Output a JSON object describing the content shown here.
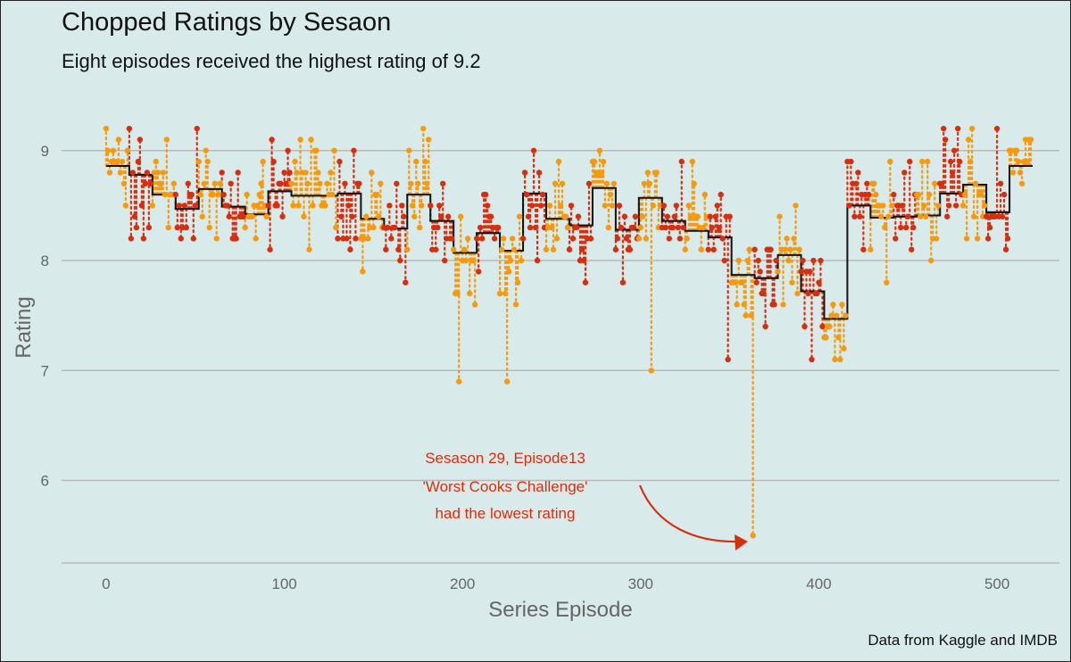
{
  "title": "Chopped Ratings by Sesaon",
  "subtitle": "Eight episodes received the highest rating of 9.2",
  "caption": "Data from Kaggle and IMDB",
  "annotation": {
    "line1": "Sesason 29, Episode13",
    "line2": "'Worst Cooks Challenge'",
    "line3": "had the lowest rating"
  },
  "colors": {
    "background": "#d8eae9",
    "odd_season": "#f59a0e",
    "even_season": "#d62f10",
    "season_mean": "#111111",
    "gridline": "#b9b9b9",
    "annotation": "#d62f10"
  },
  "chart_data": {
    "type": "scatter",
    "title": "Chopped Ratings by Sesaon",
    "subtitle": "Eight episodes received the highest rating of 9.2",
    "xlabel": "Series Episode",
    "ylabel": "Rating",
    "xlim": [
      -25,
      535
    ],
    "ylim": [
      5.25,
      9.55
    ],
    "xticks": [
      0,
      100,
      200,
      300,
      400,
      500
    ],
    "yticks": [
      6,
      7,
      8,
      9
    ],
    "grid": "horizontal",
    "legend": "none",
    "series_description": "Episode ratings drawn as points with dotted segments to the season mean; points alternate orange/red by season; black step line is the season mean rating",
    "season_means": [
      {
        "start": 0,
        "end": 13,
        "mean": 8.86
      },
      {
        "start": 13,
        "end": 26,
        "mean": 8.78
      },
      {
        "start": 26,
        "end": 39,
        "mean": 8.6
      },
      {
        "start": 39,
        "end": 52,
        "mean": 8.47
      },
      {
        "start": 52,
        "end": 65,
        "mean": 8.65
      },
      {
        "start": 65,
        "end": 78,
        "mean": 8.49
      },
      {
        "start": 78,
        "end": 91,
        "mean": 8.42
      },
      {
        "start": 91,
        "end": 104,
        "mean": 8.63
      },
      {
        "start": 104,
        "end": 130,
        "mean": 8.59
      },
      {
        "start": 130,
        "end": 143,
        "mean": 8.61
      },
      {
        "start": 143,
        "end": 156,
        "mean": 8.38
      },
      {
        "start": 156,
        "end": 169,
        "mean": 8.29
      },
      {
        "start": 169,
        "end": 182,
        "mean": 8.6
      },
      {
        "start": 182,
        "end": 195,
        "mean": 8.36
      },
      {
        "start": 195,
        "end": 208,
        "mean": 8.07
      },
      {
        "start": 208,
        "end": 221,
        "mean": 8.25
      },
      {
        "start": 221,
        "end": 234,
        "mean": 8.09
      },
      {
        "start": 234,
        "end": 247,
        "mean": 8.61
      },
      {
        "start": 247,
        "end": 260,
        "mean": 8.38
      },
      {
        "start": 260,
        "end": 273,
        "mean": 8.32
      },
      {
        "start": 273,
        "end": 286,
        "mean": 8.66
      },
      {
        "start": 286,
        "end": 299,
        "mean": 8.28
      },
      {
        "start": 299,
        "end": 312,
        "mean": 8.57
      },
      {
        "start": 312,
        "end": 325,
        "mean": 8.36
      },
      {
        "start": 325,
        "end": 338,
        "mean": 8.27
      },
      {
        "start": 338,
        "end": 351,
        "mean": 8.21
      },
      {
        "start": 351,
        "end": 364,
        "mean": 7.87
      },
      {
        "start": 364,
        "end": 377,
        "mean": 7.84
      },
      {
        "start": 377,
        "end": 390,
        "mean": 8.05
      },
      {
        "start": 390,
        "end": 403,
        "mean": 7.72
      },
      {
        "start": 403,
        "end": 416,
        "mean": 7.47
      },
      {
        "start": 416,
        "end": 429,
        "mean": 8.5
      },
      {
        "start": 429,
        "end": 442,
        "mean": 8.39
      },
      {
        "start": 442,
        "end": 455,
        "mean": 8.4
      },
      {
        "start": 455,
        "end": 468,
        "mean": 8.41
      },
      {
        "start": 468,
        "end": 481,
        "mean": 8.61
      },
      {
        "start": 481,
        "end": 494,
        "mean": 8.69
      },
      {
        "start": 494,
        "end": 507,
        "mean": 8.44
      },
      {
        "start": 507,
        "end": 520,
        "mean": 8.86
      }
    ],
    "highlights": [
      {
        "episode": 363,
        "rating": 5.5,
        "label": "lowest rating"
      },
      {
        "episode": 0,
        "rating": 9.2
      },
      {
        "episode": 13,
        "rating": 9.2
      },
      {
        "episode": 51,
        "rating": 9.2
      },
      {
        "episode": 178,
        "rating": 9.2
      },
      {
        "episode": 478,
        "rating": 9.2
      },
      {
        "episode": 486,
        "rating": 9.2
      },
      {
        "episode": 500,
        "rating": 9.2
      },
      {
        "episode": 470,
        "rating": 9.2
      }
    ],
    "extremes_low": [
      {
        "episode": 198,
        "rating": 6.9
      },
      {
        "episode": 225,
        "rating": 6.9
      },
      {
        "episode": 306,
        "rating": 7.0
      },
      {
        "episode": 349,
        "rating": 7.1
      },
      {
        "episode": 396,
        "rating": 7.1
      },
      {
        "episode": 409,
        "rating": 7.1
      },
      {
        "episode": 412,
        "rating": 7.1
      }
    ]
  }
}
